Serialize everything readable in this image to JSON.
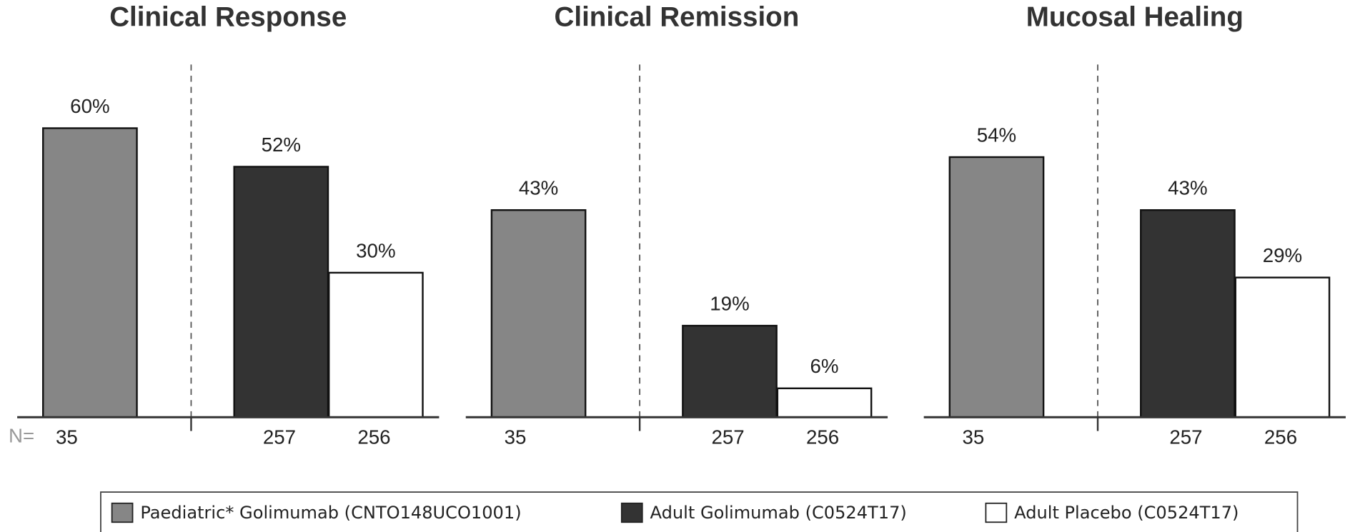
{
  "chart_data": {
    "type": "bar",
    "categories": [
      "Clinical Response",
      "Clinical Remission",
      "Mucosal Healing"
    ],
    "n_label": "N=",
    "ylim": [
      0,
      75
    ],
    "series": [
      {
        "name": "Paediatric* Golimumab (CNTO148UCO1001)",
        "color": "#868686",
        "values": [
          60,
          43,
          54
        ],
        "value_labels": [
          "60%",
          "43%",
          "54%"
        ],
        "n": [
          35,
          35,
          35
        ]
      },
      {
        "name": "Adult Golimumab (C0524T17)",
        "color": "#333333",
        "values": [
          52,
          19,
          43
        ],
        "value_labels": [
          "52%",
          "19%",
          "43%"
        ],
        "n": [
          257,
          257,
          257
        ]
      },
      {
        "name": "Adult Placebo (C0524T17)",
        "color": "#ffffff",
        "values": [
          30,
          6,
          29
        ],
        "value_labels": [
          "30%",
          "6%",
          "29%"
        ],
        "n": [
          256,
          256,
          256
        ]
      }
    ]
  }
}
